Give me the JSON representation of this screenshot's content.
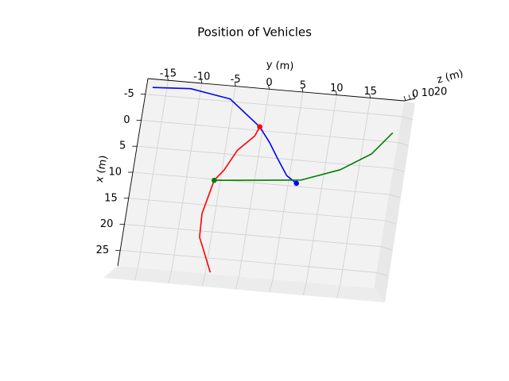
{
  "chart_data": {
    "type": "line3d",
    "title": "Position of Vehicles",
    "x_label": "x (m)",
    "y_label": "y (m)",
    "z_label": "z (m)",
    "xlim": [
      -8,
      28
    ],
    "ylim": [
      -18,
      20
    ],
    "zlim": [
      0,
      20
    ],
    "xticks": [
      -5,
      0,
      5,
      10,
      15,
      20,
      25
    ],
    "yticks": [
      -15,
      -10,
      -5,
      0,
      5,
      10,
      15
    ],
    "zticks": [
      0,
      10,
      20
    ],
    "grid": true,
    "series": [
      {
        "color": "#0000ff",
        "x": [
          -6.4,
          -6.8,
          -5.5,
          -0.7,
          2.1,
          4.9,
          8.1,
          9.4
        ],
        "y": [
          -17.1,
          -11.5,
          -5.5,
          -0.5,
          1.3,
          2.8,
          4.6,
          6.2
        ]
      },
      {
        "color": "#ff0000",
        "x": [
          -0.7,
          1.1,
          4.1,
          8.1,
          10.2,
          16.7,
          21.2,
          27.7
        ],
        "y": [
          -0.5,
          -1,
          -3.2,
          -4.7,
          -5.9,
          -6.9,
          -6.7,
          -4.3
        ]
      },
      {
        "color": "#008000",
        "x": [
          10.2,
          9.4,
          8.7,
          6.1,
          2.6,
          -1.75
        ],
        "y": [
          -5.9,
          1,
          6.8,
          12.3,
          16.5,
          19.1
        ]
      }
    ],
    "markers": [
      {
        "color": "#ff0000",
        "x": -0.7,
        "y": -0.5
      },
      {
        "color": "#008000",
        "x": 10.2,
        "y": -5.9
      },
      {
        "color": "#0000ff",
        "x": 9.4,
        "y": 6.2
      }
    ]
  }
}
